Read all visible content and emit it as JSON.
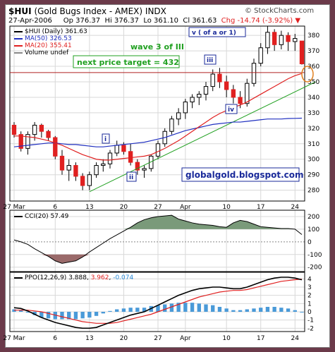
{
  "header": {
    "symbol": "$HUI",
    "name": "(Gold Bugs Index - AMEX) INDX",
    "watermark": "© StockCharts.com",
    "date": "27-Apr-2006",
    "open": "Op 376.37",
    "high": "Hi 376.37",
    "low": "Lo 361.10",
    "close": "Cl 361.63",
    "change": "Chg -14.74 (-3.92%)",
    "change_arrow": "down-arrow-icon"
  },
  "legend": {
    "price": "$HUI (Daily) 361.63",
    "ma50": "MA(50) 326.53",
    "ma20": "MA(20) 355.41",
    "volume": "Volume undef",
    "cci": "CCI(20) 57.49",
    "ppo_label": "PPO(12,26,9)",
    "ppo_value": "3.888",
    "ppo_signal": "3.962",
    "ppo_hist": "-0.074"
  },
  "annotations": {
    "wave": "wave 3 of III",
    "target": "next price target = 432",
    "site": "globalgold.blogspot.com",
    "wave_v": "v ( of a or 1)",
    "wave_i": "i",
    "wave_ii": "ii",
    "wave_iii": "iii",
    "wave_iv": "iv"
  },
  "colors": {
    "up": "#20a020",
    "down": "#e02020",
    "ma50": "#2030c0",
    "ma20": "#e02020",
    "trendline": "#20a020",
    "target_line": "#b02020",
    "cci_fill_pos": "#7a9a7a",
    "cci_fill_neg": "#9a6a6a",
    "ppo_line": "#000000",
    "signal_line": "#e02020",
    "hist": "#4a9ad8",
    "annotation_blue": "#1a2a9a",
    "annotation_green": "#20a020"
  },
  "chart_data": [
    {
      "type": "candlestick",
      "title": "$HUI (Gold Bugs Index - AMEX) INDX",
      "x_tick_labels": [
        "27 Mar",
        "6",
        "13",
        "20",
        "27",
        "Apr",
        "10",
        "17",
        "24"
      ],
      "x_tick_index": [
        0,
        6,
        11,
        16,
        21,
        25,
        31,
        36,
        41
      ],
      "y_tick_labels": [
        "280",
        "290",
        "300",
        "310",
        "320",
        "330",
        "340",
        "350",
        "360",
        "370",
        "380"
      ],
      "ylim": [
        273,
        386
      ],
      "series": [
        {
          "name": "$HUI (Daily)",
          "ohlc": [
            [
              322,
              324,
              314,
              316
            ],
            [
              316,
              318,
              305,
              307
            ],
            [
              307,
              318,
              303,
              316
            ],
            [
              316,
              324,
              312,
              322
            ],
            [
              322,
              323,
              314,
              318
            ],
            [
              318,
              319,
              312,
              314
            ],
            [
              314,
              315,
              300,
              302
            ],
            [
              302,
              306,
              290,
              293
            ],
            [
              293,
              300,
              286,
              296
            ],
            [
              296,
              298,
              286,
              289
            ],
            [
              289,
              291,
              280,
              283
            ],
            [
              283,
              292,
              280,
              290
            ],
            [
              290,
              298,
              288,
              296
            ],
            [
              296,
              300,
              292,
              297
            ],
            [
              297,
              306,
              294,
              304
            ],
            [
              304,
              312,
              302,
              309
            ],
            [
              309,
              311,
              303,
              305
            ],
            [
              305,
              310,
              296,
              298
            ],
            [
              298,
              300,
              290,
              293
            ],
            [
              293,
              296,
              288,
              294
            ],
            [
              294,
              303,
              292,
              302
            ],
            [
              302,
              312,
              300,
              310
            ],
            [
              310,
              320,
              308,
              318
            ],
            [
              318,
              328,
              316,
              326
            ],
            [
              326,
              333,
              322,
              330
            ],
            [
              330,
              339,
              326,
              337
            ],
            [
              337,
              342,
              333,
              340
            ],
            [
              340,
              344,
              335,
              342
            ],
            [
              342,
              350,
              338,
              347
            ],
            [
              347,
              358,
              344,
              355
            ],
            [
              355,
              359,
              346,
              350
            ],
            [
              350,
              354,
              340,
              345
            ],
            [
              345,
              348,
              336,
              340
            ],
            [
              340,
              344,
              333,
              336
            ],
            [
              336,
              352,
              334,
              349
            ],
            [
              349,
              365,
              347,
              362
            ],
            [
              362,
              375,
              360,
              372
            ],
            [
              372,
              386,
              368,
              382
            ],
            [
              382,
              384,
              370,
              374
            ],
            [
              374,
              383,
              371,
              380
            ],
            [
              380,
              382,
              370,
              376
            ],
            [
              376,
              381,
              370,
              378
            ],
            [
              376.37,
              376.37,
              361.1,
              361.63
            ]
          ]
        },
        {
          "name": "MA(50)",
          "value": 326.53,
          "values": [
            308,
            308.5,
            309,
            309.5,
            310,
            310.5,
            310.5,
            310,
            309.5,
            309.5,
            309,
            308.5,
            308,
            308,
            308.5,
            309,
            309.5,
            310,
            310.5,
            311,
            312,
            313,
            314,
            315.5,
            317,
            318.5,
            319.5,
            320.5,
            321.5,
            322.5,
            323,
            323.5,
            324,
            324,
            324.5,
            325,
            325.5,
            326,
            326,
            326,
            326.3,
            326.4,
            326.53
          ]
        },
        {
          "name": "MA(20)",
          "value": 355.41,
          "values": [
            315,
            315,
            314.5,
            314,
            313,
            312,
            310.5,
            309,
            307,
            305,
            303,
            301.5,
            300,
            299.5,
            299.5,
            300,
            300.5,
            301,
            301.5,
            302,
            303,
            305,
            307,
            309.5,
            312,
            315,
            318,
            321,
            324,
            327,
            329.5,
            331.5,
            333.5,
            335,
            337,
            339.5,
            342,
            344.5,
            347,
            349.5,
            352,
            354,
            355.41
          ]
        }
      ],
      "annotations": {
        "target_level": 356,
        "trendline_from": [
          11,
          279
        ],
        "trendline_to": [
          44,
          350
        ]
      }
    },
    {
      "type": "line",
      "title": "CCI(20) 57.49",
      "y_tick_labels": [
        "200",
        "100",
        "0",
        "-100",
        "-200"
      ],
      "ylim": [
        -235,
        250
      ],
      "series": [
        {
          "name": "CCI(20)",
          "values": [
            15,
            0,
            -20,
            -55,
            -85,
            -115,
            -150,
            -170,
            -160,
            -150,
            -120,
            -80,
            -45,
            -10,
            25,
            55,
            85,
            115,
            150,
            175,
            190,
            200,
            205,
            210,
            180,
            165,
            150,
            140,
            135,
            130,
            120,
            115,
            150,
            170,
            160,
            140,
            120,
            115,
            110,
            105,
            105,
            100,
            57.49
          ]
        }
      ]
    },
    {
      "type": "line",
      "title": "PPO(12,26,9)",
      "y_tick_labels": [
        "4",
        "3",
        "2",
        "1",
        "0",
        "-1",
        "-2"
      ],
      "ylim": [
        -2.4,
        4.8
      ],
      "series": [
        {
          "name": "PPO",
          "values": [
            0.5,
            0.4,
            0.1,
            -0.3,
            -0.7,
            -1.0,
            -1.3,
            -1.5,
            -1.7,
            -1.9,
            -2.0,
            -2.0,
            -1.9,
            -1.6,
            -1.3,
            -1.0,
            -0.7,
            -0.4,
            -0.2,
            0.0,
            0.4,
            0.8,
            1.2,
            1.6,
            2.0,
            2.3,
            2.6,
            2.8,
            2.9,
            3.0,
            3.0,
            2.9,
            2.8,
            2.8,
            3.0,
            3.3,
            3.6,
            3.9,
            4.1,
            4.2,
            4.2,
            4.1,
            3.888
          ]
        },
        {
          "name": "Signal",
          "values": [
            0.2,
            0.2,
            0.2,
            0.1,
            0.0,
            -0.2,
            -0.4,
            -0.6,
            -0.8,
            -1.0,
            -1.2,
            -1.3,
            -1.4,
            -1.4,
            -1.4,
            -1.3,
            -1.1,
            -0.9,
            -0.7,
            -0.5,
            -0.3,
            0.0,
            0.3,
            0.6,
            0.9,
            1.2,
            1.5,
            1.8,
            2.0,
            2.2,
            2.4,
            2.5,
            2.6,
            2.6,
            2.7,
            2.9,
            3.1,
            3.3,
            3.5,
            3.7,
            3.8,
            3.9,
            3.962
          ]
        },
        {
          "name": "Histogram",
          "values": [
            0.3,
            0.2,
            -0.1,
            -0.4,
            -0.7,
            -0.8,
            -0.9,
            -0.9,
            -0.9,
            -0.9,
            -0.8,
            -0.7,
            -0.5,
            -0.2,
            0.1,
            0.3,
            0.4,
            0.5,
            0.5,
            0.5,
            0.7,
            0.8,
            0.9,
            1.0,
            1.1,
            1.1,
            1.1,
            1.0,
            0.9,
            0.8,
            0.6,
            0.4,
            0.2,
            0.2,
            0.3,
            0.4,
            0.5,
            0.6,
            0.6,
            0.5,
            0.4,
            0.2,
            -0.074
          ]
        }
      ]
    }
  ]
}
